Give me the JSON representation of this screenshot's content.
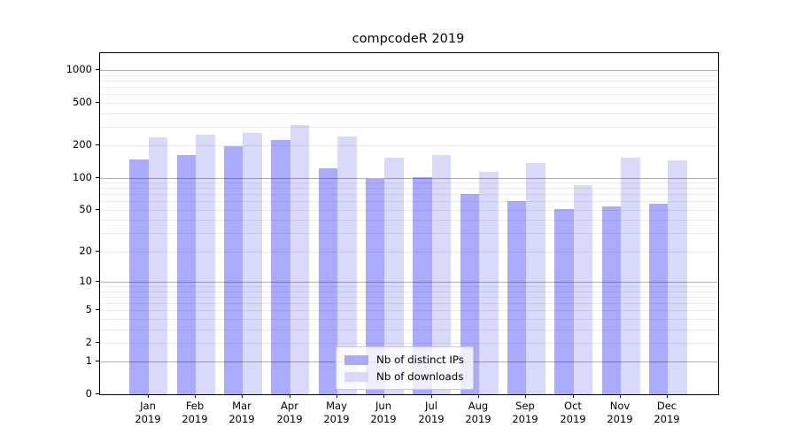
{
  "title": "compcodeR 2019",
  "chart_data": {
    "type": "bar",
    "title": "compcodeR 2019",
    "categories": [
      "Jan 2019",
      "Feb 2019",
      "Mar 2019",
      "Apr 2019",
      "May 2019",
      "Jun 2019",
      "Jul 2019",
      "Aug 2019",
      "Sep 2019",
      "Oct 2019",
      "Nov 2019",
      "Dec 2019"
    ],
    "series": [
      {
        "name": "Nb of distinct IPs",
        "color": "#aaaaff",
        "values": [
          150,
          162,
          197,
          226,
          122,
          97,
          102,
          71,
          61,
          51,
          54,
          57
        ]
      },
      {
        "name": "Nb of downloads",
        "color": "#d9d9f9",
        "values": [
          237,
          255,
          262,
          312,
          244,
          154,
          163,
          113,
          138,
          85,
          153,
          145
        ]
      }
    ],
    "y_scale": "log10(value+1)",
    "y_ticks": [
      0,
      1,
      2,
      5,
      10,
      20,
      50,
      100,
      200,
      500,
      1000
    ],
    "y_major_gridlines": [
      1,
      10,
      100,
      1000
    ],
    "y_minor_gridlines": [
      2,
      3,
      4,
      5,
      6,
      7,
      8,
      9,
      20,
      30,
      40,
      50,
      60,
      70,
      80,
      90,
      200,
      300,
      400,
      500,
      600,
      700,
      800,
      900
    ],
    "ylim": [
      0,
      1450
    ],
    "xlabel": "",
    "ylabel": "",
    "grid": true,
    "legend_position": "lower center"
  },
  "colors": {
    "bar_distinct_ips": "#aaaaff",
    "bar_downloads": "#d9d9f9",
    "axis": "#000000",
    "background": "#ffffff"
  }
}
